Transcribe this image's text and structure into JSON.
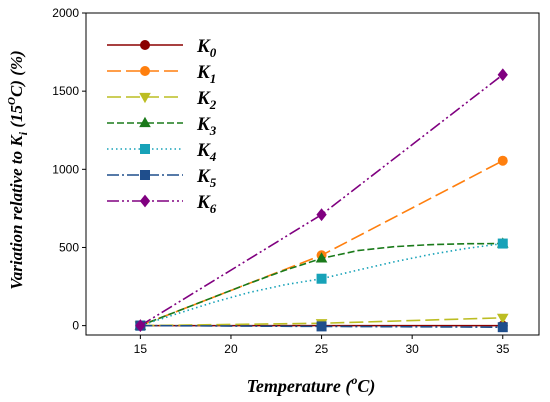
{
  "chart_data": {
    "type": "line",
    "xlabel": {
      "main": "Temperature (",
      "sup": "o",
      "tail": "C)"
    },
    "ylabel": {
      "pre": "Variation relative to K",
      "sub": "i",
      "mid": " (15",
      "sup": "O",
      "tail": "C) (%)"
    },
    "xlim": [
      12,
      37
    ],
    "ylim": [
      -60,
      2000
    ],
    "xticks": [
      15,
      20,
      25,
      30,
      35
    ],
    "yticks": [
      0,
      500,
      1000,
      1500,
      2000
    ],
    "x": [
      15,
      25,
      35
    ],
    "legend_position": "top-left",
    "series": [
      {
        "name": "K",
        "sub": "0",
        "color": "#8b0000",
        "dash": "",
        "marker": "circle",
        "values": [
          0,
          0,
          0
        ],
        "curve": [
          [
            15,
            0
          ],
          [
            25,
            0
          ],
          [
            35,
            0
          ]
        ]
      },
      {
        "name": "K",
        "sub": "1",
        "color": "#ff7f0e",
        "dash": "14,5",
        "marker": "circle",
        "values": [
          0,
          450,
          1055
        ],
        "curve": [
          [
            15,
            0
          ],
          [
            25,
            450
          ],
          [
            35,
            1055
          ]
        ]
      },
      {
        "name": "K",
        "sub": "2",
        "color": "#bcbd22",
        "dash": "14,5",
        "marker": "triangle-down",
        "values": [
          0,
          15,
          50
        ],
        "curve": [
          [
            15,
            0
          ],
          [
            25,
            15
          ],
          [
            35,
            50
          ]
        ]
      },
      {
        "name": "K",
        "sub": "3",
        "color": "#1a7a1a",
        "dash": "7,3",
        "marker": "triangle-up",
        "values": [
          0,
          430,
          525
        ],
        "curve": [
          [
            15,
            0
          ],
          [
            17,
            90
          ],
          [
            19,
            180
          ],
          [
            21,
            270
          ],
          [
            23,
            355
          ],
          [
            25,
            430
          ],
          [
            27,
            480
          ],
          [
            29,
            505
          ],
          [
            31,
            518
          ],
          [
            33,
            524
          ],
          [
            35,
            525
          ]
        ]
      },
      {
        "name": "K",
        "sub": "4",
        "color": "#17a2b8",
        "dash": "1.5,3",
        "marker": "square",
        "values": [
          0,
          300,
          525
        ],
        "curve": [
          [
            15,
            0
          ],
          [
            17,
            75
          ],
          [
            19,
            148
          ],
          [
            21,
            212
          ],
          [
            23,
            262
          ],
          [
            25,
            300
          ],
          [
            27,
            355
          ],
          [
            29,
            408
          ],
          [
            31,
            455
          ],
          [
            33,
            494
          ],
          [
            35,
            525
          ]
        ]
      },
      {
        "name": "K",
        "sub": "5",
        "color": "#1f4e8c",
        "dash": "12,3,2,3",
        "marker": "square",
        "values": [
          0,
          -5,
          -10
        ],
        "curve": [
          [
            15,
            0
          ],
          [
            25,
            -5
          ],
          [
            35,
            -10
          ]
        ]
      },
      {
        "name": "K",
        "sub": "6",
        "color": "#800080",
        "dash": "12,3,2,3,2,3",
        "marker": "diamond",
        "values": [
          0,
          710,
          1605
        ],
        "curve": [
          [
            15,
            0
          ],
          [
            25,
            710
          ],
          [
            35,
            1605
          ]
        ]
      }
    ]
  }
}
